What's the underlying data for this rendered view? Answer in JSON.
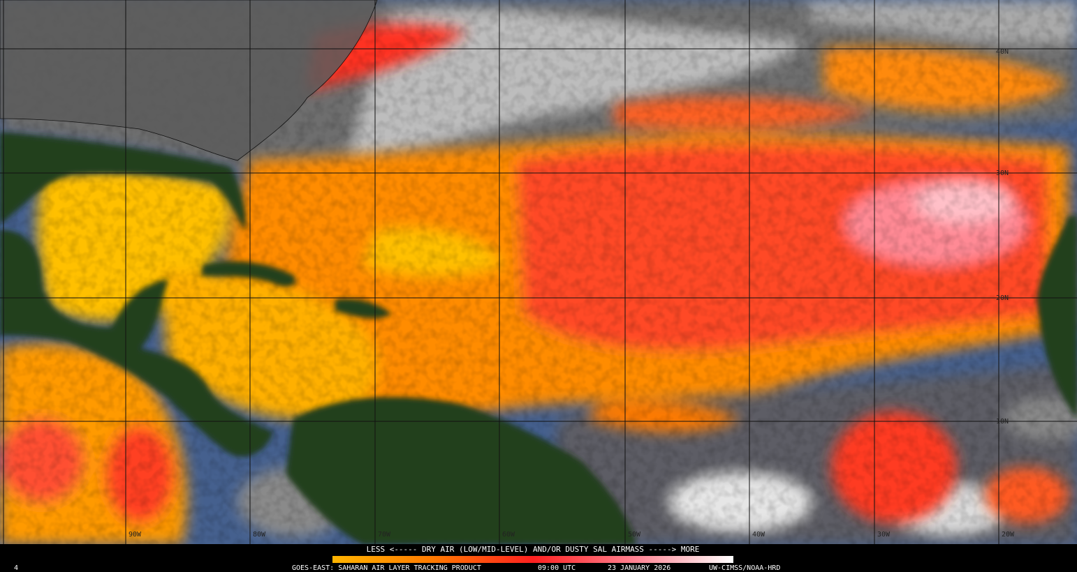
{
  "map": {
    "lat_labels": [
      "40N",
      "30N",
      "20N",
      "10N"
    ],
    "lon_labels": [
      "90W",
      "80W",
      "70W",
      "60W",
      "50W",
      "40W",
      "30W",
      "20W"
    ]
  },
  "legend": {
    "caption": "LESS <----- DRY AIR (LOW/MID-LEVEL) AND/OR DUSTY SAL AIRMASS -----> MORE"
  },
  "footer": {
    "frame": "4",
    "product": "GOES-EAST: SAHARAN AIR LAYER TRACKING PRODUCT",
    "time": "09:00 UTC",
    "date": "23 JANUARY 2026",
    "credit": "UW-CIMSS/NOAA-HRD"
  }
}
